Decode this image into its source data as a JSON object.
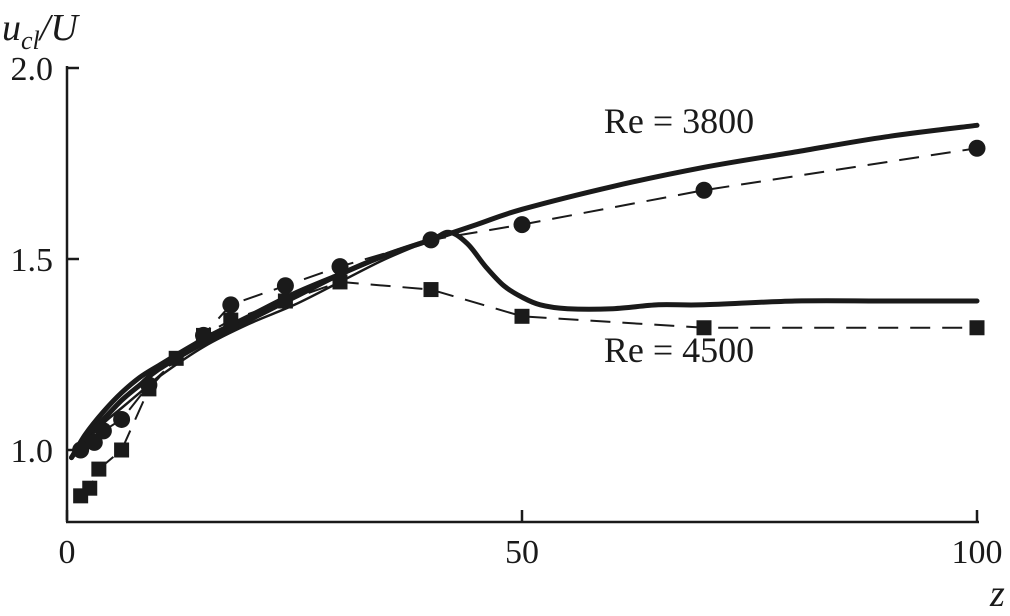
{
  "chart_data": {
    "type": "line",
    "ylabel_parts": {
      "base": "u",
      "sub": "cl",
      "rest": "/U"
    },
    "xlabel": "z",
    "xlim": [
      0,
      100
    ],
    "ylim": [
      0.85,
      2.0
    ],
    "x_ticks": [
      0,
      50,
      100
    ],
    "x_tick_labels": [
      "0",
      "50",
      "100"
    ],
    "y_ticks": [
      1.0,
      1.5,
      2.0
    ],
    "y_tick_labels": [
      "1.0",
      "1.5",
      "2.0"
    ],
    "grid": false,
    "annotations": [
      {
        "text": "Re = 3800",
        "x": 59,
        "y": 1.83
      },
      {
        "text": "Re = 4500",
        "x": 59,
        "y": 1.23
      }
    ],
    "series": [
      {
        "style": "solid-thick",
        "x": [
          0.5,
          2,
          4,
          6,
          8,
          10,
          15,
          20,
          25,
          30,
          35,
          40,
          45,
          50,
          60,
          70,
          80,
          90,
          100
        ],
        "y": [
          0.98,
          1.04,
          1.1,
          1.15,
          1.19,
          1.22,
          1.29,
          1.35,
          1.41,
          1.46,
          1.51,
          1.55,
          1.59,
          1.63,
          1.69,
          1.74,
          1.78,
          1.82,
          1.85
        ]
      },
      {
        "style": "solid-thick",
        "x": [
          0.5,
          2,
          4,
          6,
          8,
          10,
          15,
          20,
          25,
          30,
          35,
          40,
          42,
          44,
          46,
          48,
          50,
          52,
          55,
          60,
          65,
          70,
          80,
          90,
          100
        ],
        "y": [
          0.98,
          1.03,
          1.08,
          1.13,
          1.17,
          1.21,
          1.28,
          1.34,
          1.4,
          1.46,
          1.51,
          1.55,
          1.57,
          1.54,
          1.48,
          1.43,
          1.4,
          1.38,
          1.37,
          1.37,
          1.38,
          1.38,
          1.39,
          1.39,
          1.39
        ]
      },
      {
        "style": "solid-thin",
        "x": [
          0.5,
          2,
          4,
          6,
          8,
          10,
          15,
          20,
          25,
          30,
          35,
          40
        ],
        "y": [
          0.98,
          1.02,
          1.07,
          1.11,
          1.15,
          1.19,
          1.27,
          1.33,
          1.38,
          1.44,
          1.5,
          1.55
        ]
      },
      {
        "style": "dashed",
        "marker": "circle",
        "x": [
          1.5,
          3,
          4,
          6,
          9,
          15,
          18,
          24,
          30,
          40,
          50,
          70,
          100
        ],
        "y": [
          1.0,
          1.02,
          1.05,
          1.08,
          1.17,
          1.3,
          1.38,
          1.43,
          1.48,
          1.55,
          1.59,
          1.68,
          1.79
        ]
      },
      {
        "style": "dashed",
        "marker": "square",
        "x": [
          1.5,
          2.5,
          3.5,
          6,
          9,
          12,
          15,
          18,
          24,
          30,
          40,
          50,
          70,
          100
        ],
        "y": [
          0.88,
          0.9,
          0.95,
          1.0,
          1.16,
          1.24,
          1.3,
          1.34,
          1.39,
          1.44,
          1.42,
          1.35,
          1.32,
          1.32
        ]
      }
    ]
  }
}
